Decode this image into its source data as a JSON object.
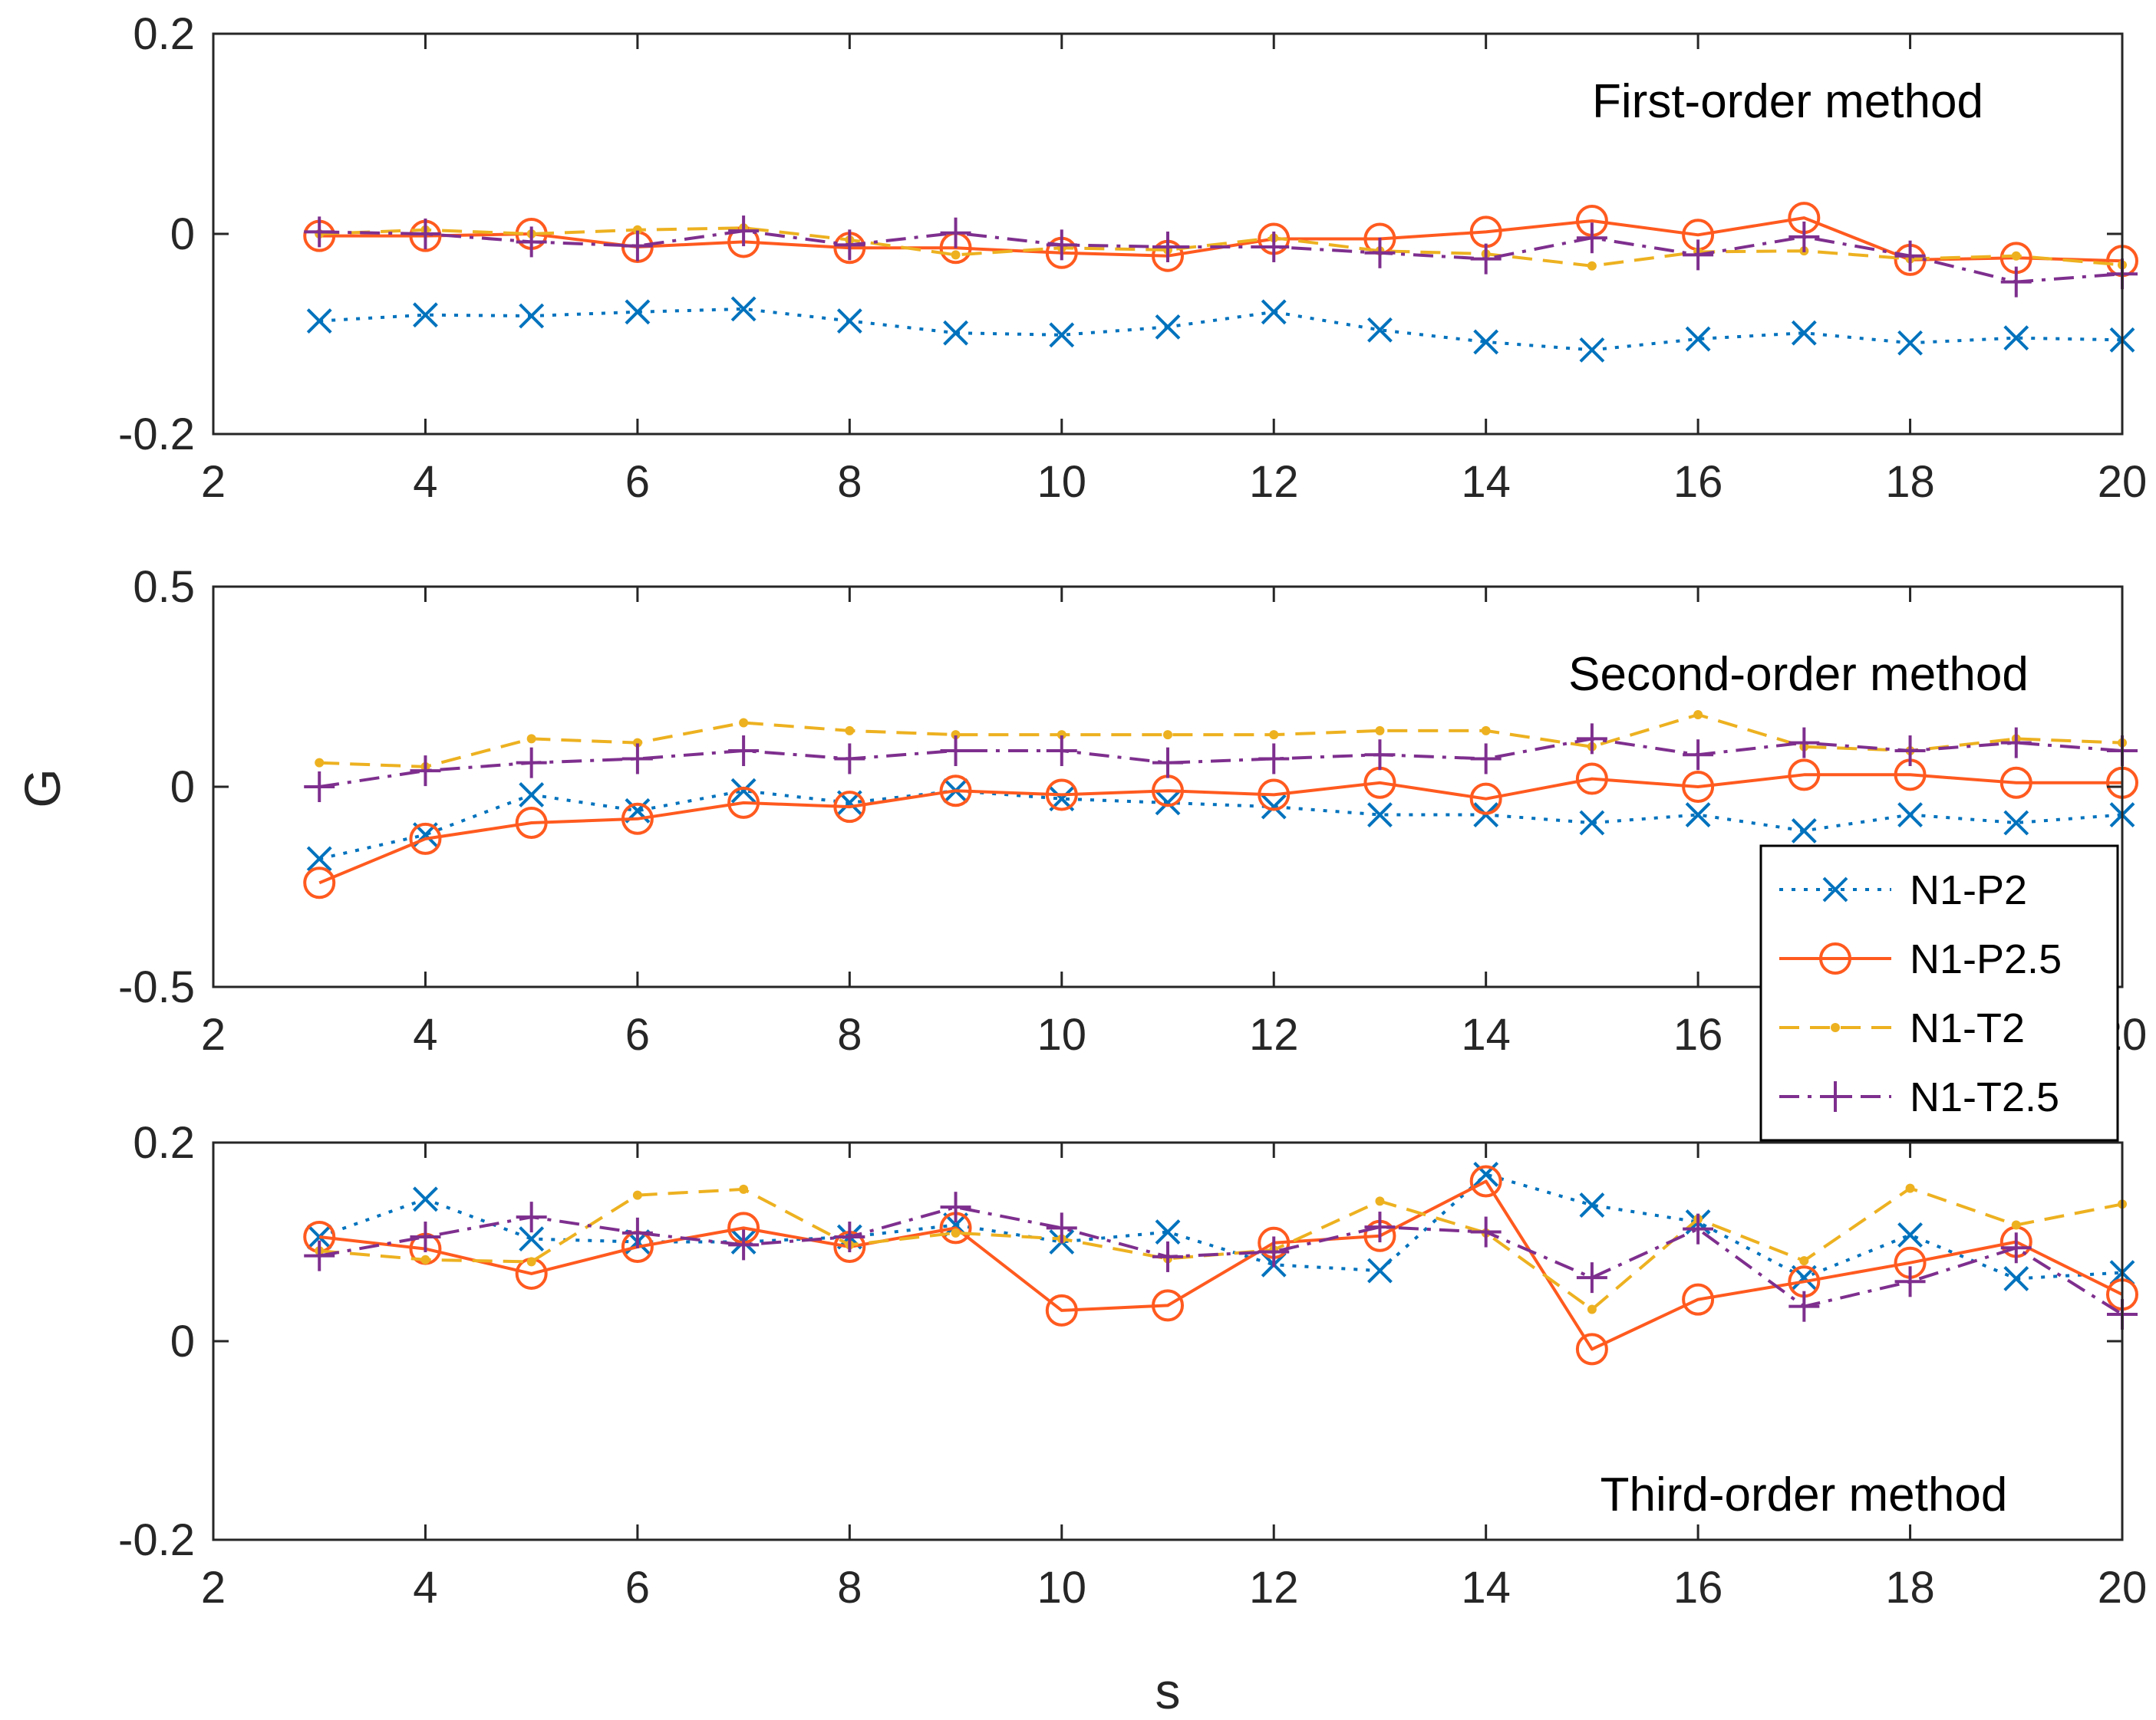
{
  "chart_data": {
    "type": "line",
    "xlabel": "s",
    "ylabel": "G",
    "x": [
      3,
      4,
      5,
      6,
      7,
      8,
      9,
      10,
      11,
      12,
      13,
      14,
      15,
      16,
      17,
      18,
      19,
      20
    ],
    "xlim": [
      2,
      20
    ],
    "xticks": [
      "2",
      "4",
      "6",
      "8",
      "10",
      "12",
      "14",
      "16",
      "18",
      "20"
    ],
    "legend": {
      "placement": "right, overlapping second and third panels",
      "entries": [
        "N1-P2",
        "N1-P2.5",
        "N1-T2",
        "N1-T2.5"
      ]
    },
    "series_styles": [
      {
        "name": "N1-P2",
        "color": "#0072BD",
        "line": "dotted",
        "marker": "x"
      },
      {
        "name": "N1-P2.5",
        "color": "#FF5A1F",
        "line": "solid",
        "marker": "circle"
      },
      {
        "name": "N1-T2",
        "color": "#EDB120",
        "line": "dashed",
        "marker": "dot"
      },
      {
        "name": "N1-T2.5",
        "color": "#7E2F8E",
        "line": "dash-dot",
        "marker": "plus"
      }
    ],
    "panels": [
      {
        "title": "First-order method",
        "ylim": [
          -0.2,
          0.2
        ],
        "yticks": [
          "-0.2",
          "0",
          "0.2"
        ],
        "series": [
          {
            "name": "N1-P2",
            "values": [
              -0.087,
              -0.081,
              -0.082,
              -0.078,
              -0.075,
              -0.087,
              -0.099,
              -0.101,
              -0.093,
              -0.078,
              -0.096,
              -0.108,
              -0.116,
              -0.105,
              -0.099,
              -0.109,
              -0.104,
              -0.106
            ]
          },
          {
            "name": "N1-P2.5",
            "values": [
              -0.002,
              -0.002,
              0.0,
              -0.013,
              -0.008,
              -0.014,
              -0.014,
              -0.019,
              -0.022,
              -0.005,
              -0.005,
              0.002,
              0.013,
              -0.001,
              0.016,
              -0.026,
              -0.024,
              -0.027
            ]
          },
          {
            "name": "N1-T2",
            "values": [
              0.0,
              0.004,
              0.0,
              0.004,
              0.006,
              -0.006,
              -0.021,
              -0.014,
              -0.016,
              -0.004,
              -0.017,
              -0.02,
              -0.032,
              -0.018,
              -0.017,
              -0.025,
              -0.022,
              -0.031
            ]
          },
          {
            "name": "N1-T2.5",
            "values": [
              0.002,
              0.0,
              -0.008,
              -0.012,
              0.003,
              -0.011,
              0.001,
              -0.011,
              -0.013,
              -0.013,
              -0.019,
              -0.025,
              -0.004,
              -0.021,
              -0.003,
              -0.022,
              -0.048,
              -0.04
            ]
          }
        ]
      },
      {
        "title": "Second-order method",
        "ylim": [
          -0.5,
          0.5
        ],
        "yticks": [
          "-0.5",
          "0",
          "0.5"
        ],
        "series": [
          {
            "name": "N1-P2",
            "values": [
              -0.18,
              -0.12,
              -0.02,
              -0.06,
              -0.01,
              -0.04,
              -0.01,
              -0.03,
              -0.04,
              -0.05,
              -0.07,
              -0.07,
              -0.09,
              -0.07,
              -0.11,
              -0.07,
              -0.09,
              -0.07
            ]
          },
          {
            "name": "N1-P2.5",
            "values": [
              -0.24,
              -0.13,
              -0.09,
              -0.08,
              -0.04,
              -0.05,
              -0.01,
              -0.02,
              -0.01,
              -0.02,
              0.01,
              -0.03,
              0.02,
              0.0,
              0.03,
              0.03,
              0.01,
              0.01
            ]
          },
          {
            "name": "N1-T2",
            "values": [
              0.06,
              0.05,
              0.12,
              0.11,
              0.16,
              0.14,
              0.13,
              0.13,
              0.13,
              0.13,
              0.14,
              0.14,
              0.1,
              0.18,
              0.1,
              0.09,
              0.12,
              0.11
            ]
          },
          {
            "name": "N1-T2.5",
            "values": [
              0.0,
              0.04,
              0.06,
              0.07,
              0.09,
              0.07,
              0.09,
              0.09,
              0.06,
              0.07,
              0.08,
              0.07,
              0.12,
              0.08,
              0.11,
              0.09,
              0.11,
              0.09
            ]
          }
        ]
      },
      {
        "title": "Third-order method",
        "ylim": [
          -0.2,
          0.2
        ],
        "yticks": [
          "-0.2",
          "0",
          "0.2"
        ],
        "series": [
          {
            "name": "N1-P2",
            "values": [
              0.105,
              0.143,
              0.103,
              0.1,
              0.1,
              0.105,
              0.117,
              0.1,
              0.11,
              0.077,
              0.071,
              0.168,
              0.137,
              0.12,
              0.064,
              0.107,
              0.063,
              0.069
            ]
          },
          {
            "name": "N1-P2.5",
            "values": [
              0.105,
              0.093,
              0.068,
              0.095,
              0.114,
              0.095,
              0.114,
              0.031,
              0.036,
              0.099,
              0.106,
              0.161,
              -0.008,
              0.042,
              0.06,
              0.079,
              0.1,
              0.047
            ]
          },
          {
            "name": "N1-T2",
            "values": [
              0.091,
              0.082,
              0.08,
              0.147,
              0.153,
              0.097,
              0.109,
              0.103,
              0.083,
              0.092,
              0.141,
              0.109,
              0.032,
              0.123,
              0.081,
              0.154,
              0.117,
              0.138
            ]
          },
          {
            "name": "N1-T2.5",
            "values": [
              0.086,
              0.105,
              0.125,
              0.109,
              0.097,
              0.105,
              0.135,
              0.114,
              0.085,
              0.09,
              0.115,
              0.11,
              0.064,
              0.113,
              0.035,
              0.06,
              0.094,
              0.027
            ]
          }
        ]
      }
    ]
  }
}
